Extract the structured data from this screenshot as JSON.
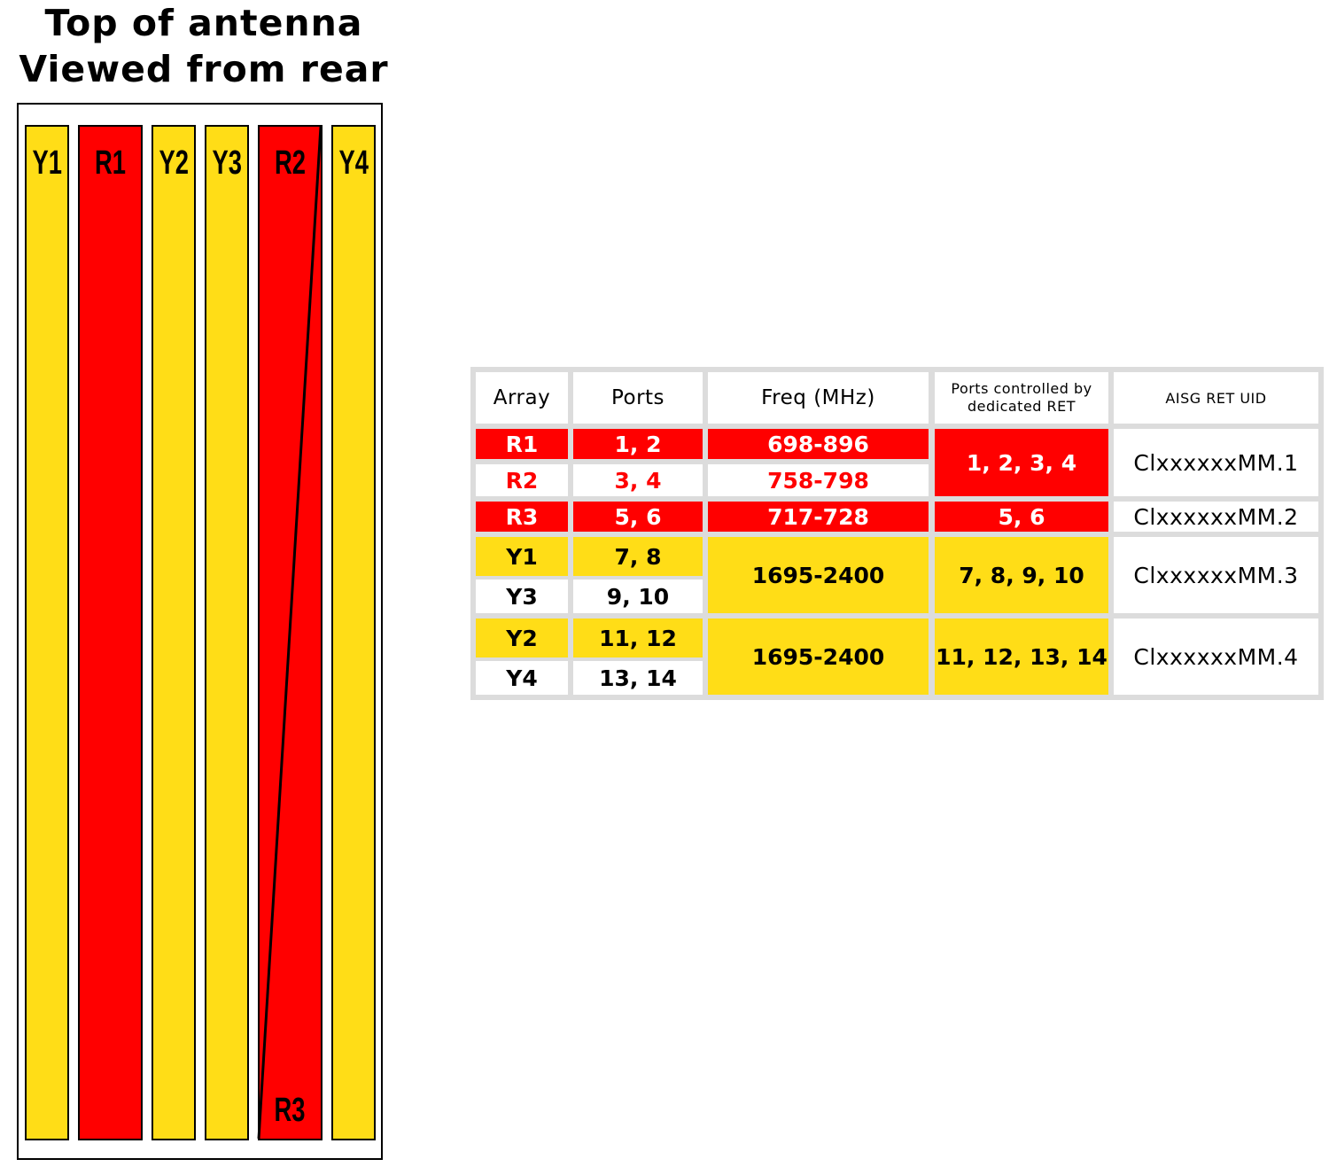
{
  "title": {
    "line1": "Top of antenna",
    "line2": "Viewed from rear"
  },
  "colors": {
    "red": "#ff0000",
    "yellow": "#ffdd17",
    "border": "#000000",
    "grid": "#dcdcdc"
  },
  "columns": [
    {
      "label": "Y1",
      "color": "yellow"
    },
    {
      "label": "R1",
      "color": "red"
    },
    {
      "label": "Y2",
      "color": "yellow"
    },
    {
      "label": "Y3",
      "color": "yellow"
    },
    {
      "label": "R2",
      "color": "red"
    },
    {
      "label": "Y4",
      "color": "yellow"
    }
  ],
  "split_label": "R3",
  "table": {
    "headers": {
      "array": "Array",
      "ports": "Ports",
      "freq": "Freq (MHz)",
      "ret": "Ports controlled by dedicated RET",
      "uid": "AISG RET UID"
    },
    "rows": [
      {
        "array": "R1",
        "ports": "1, 2",
        "freq": "698-896"
      },
      {
        "array": "R2",
        "ports": "3, 4",
        "freq": "758-798"
      },
      {
        "array": "R3",
        "ports": "5, 6",
        "freq": "717-728"
      },
      {
        "array": "Y1",
        "ports": "7, 8"
      },
      {
        "array": "Y3",
        "ports": "9, 10"
      },
      {
        "array": "Y2",
        "ports": "11, 12"
      },
      {
        "array": "Y4",
        "ports": "13, 14"
      }
    ],
    "freq_groups": [
      "1695-2400",
      "1695-2400"
    ],
    "ret_groups": [
      "1, 2, 3, 4",
      "5, 6",
      "7, 8, 9, 10",
      "11, 12, 13, 14"
    ],
    "uid_groups": [
      "ClxxxxxxMM.1",
      "ClxxxxxxMM.2",
      "ClxxxxxxMM.3",
      "ClxxxxxxMM.4"
    ]
  }
}
